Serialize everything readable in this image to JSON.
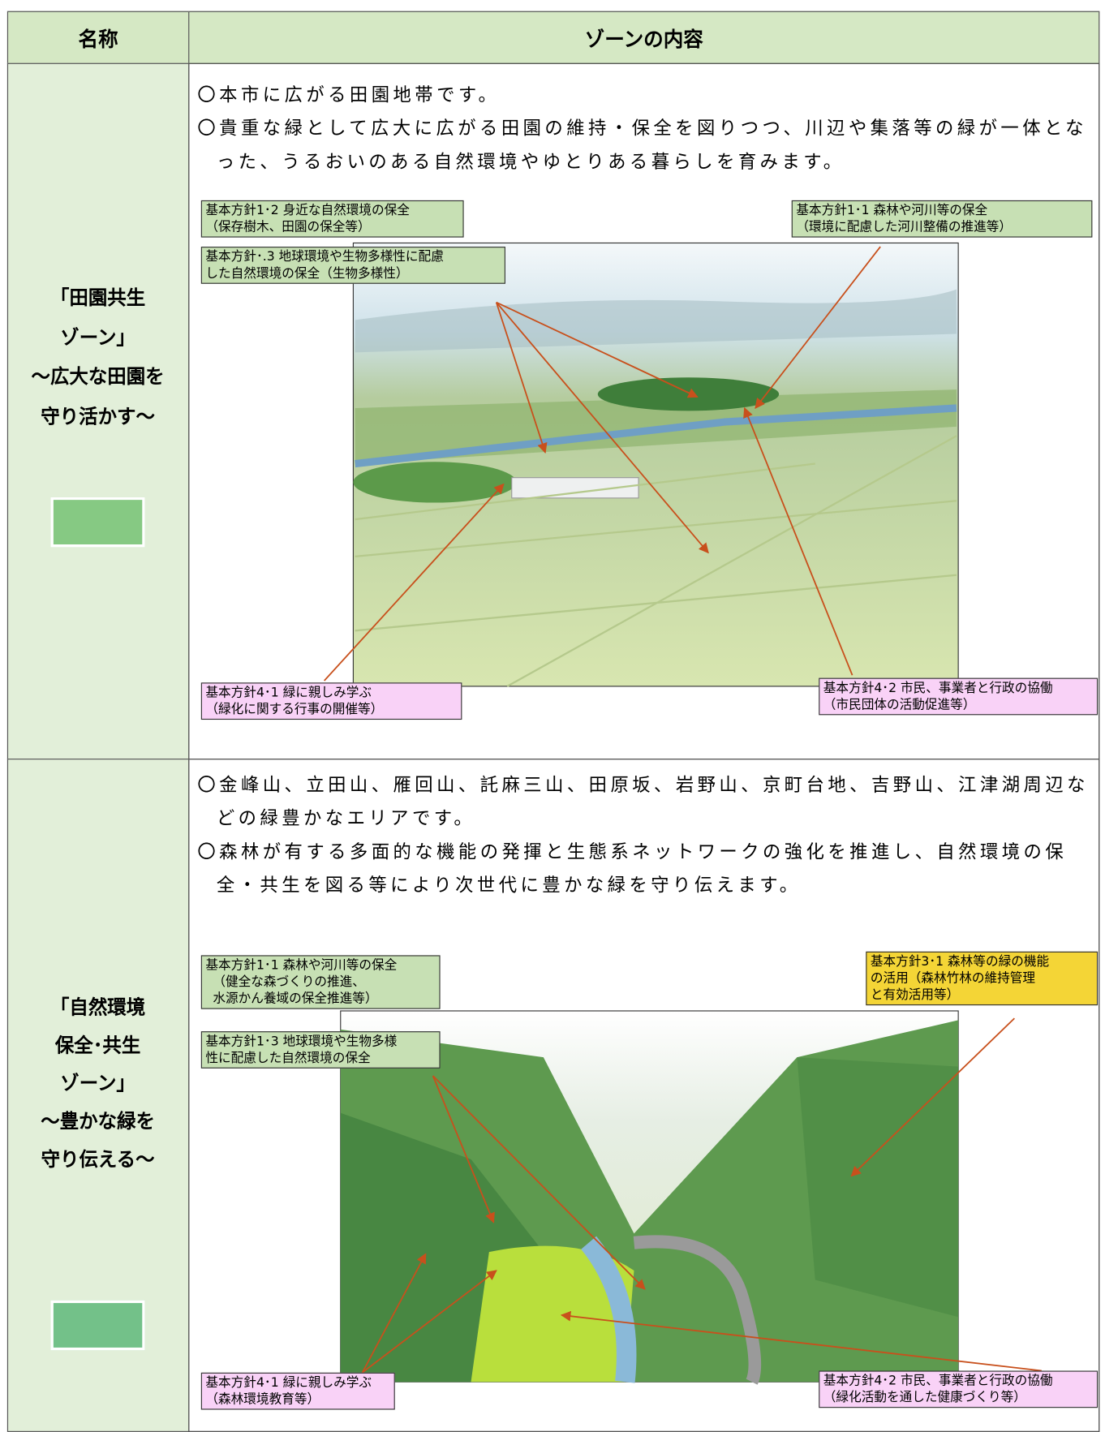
{
  "header": {
    "name": "名称",
    "content": "ゾーンの内容"
  },
  "zones": [
    {
      "name_lines": [
        "「田園共生",
        "ゾーン」",
        "～広大な田園を",
        "守り活かす～"
      ],
      "description": [
        "〇本市に広がる田園地帯です。",
        "〇貴重な緑として広大に広がる田園の維持・保全を図りつつ、川辺や集落等の緑が一体となった、うるおいのある自然環境やゆとりある暮らしを育みます。"
      ],
      "callouts": [
        {
          "lines": [
            "基本方針1･2 身近な自然環境の保全",
            "（保存樹木、田園の保全等）"
          ]
        },
        {
          "lines": [
            "基本方針･.3 地球環境や生物多様性に配慮",
            "した自然環境の保全（生物多様性）"
          ]
        },
        {
          "lines": [
            "基本方針1･1 森林や河川等の保全",
            "（環境に配慮した河川整備の推進等）"
          ]
        },
        {
          "lines": [
            "基本方針4･1 緑に親しみ学ぶ",
            "（緑化に関する行事の開催等）"
          ]
        },
        {
          "lines": [
            "基本方針4･2 市民、事業者と行政の協働",
            "（市民団体の活動促進等）"
          ]
        }
      ]
    },
    {
      "name_lines": [
        "「自然環境",
        "保全･共生",
        "ゾーン」",
        "～豊かな緑を",
        "守り伝える～"
      ],
      "description": [
        "〇金峰山、立田山、雁回山、託麻三山、田原坂、岩野山、京町台地、吉野山、江津湖周辺などの緑豊かなエリアです。",
        "〇森林が有する多面的な機能の発揮と生態系ネットワークの強化を推進し、自然環境の保全・共生を図る等により次世代に豊かな緑を守り伝えます。"
      ],
      "callouts": [
        {
          "lines": [
            "基本方針1･1 森林や河川等の保全",
            "（健全な森づくりの推進、",
            "水源かん養域の保全推進等）"
          ]
        },
        {
          "lines": [
            "基本方針1･3 地球環境や生物多様",
            "性に配慮した自然環境の保全"
          ]
        },
        {
          "lines": [
            "基本方針3･1 森林等の緑の機能",
            "の活用（森林竹林の維持管理",
            "と有効活用等）"
          ]
        },
        {
          "lines": [
            "基本方針4･1 緑に親しみ学ぶ",
            "（森林環境教育等）"
          ]
        },
        {
          "lines": [
            "基本方針4･2 市民、事業者と行政の協働",
            "（緑化活動を通した健康づくり等）"
          ]
        }
      ]
    }
  ]
}
